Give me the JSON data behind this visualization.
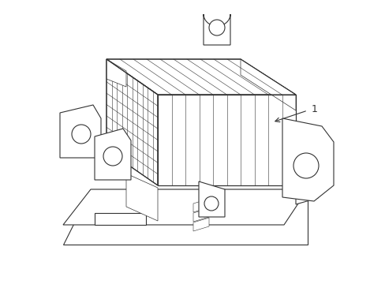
{
  "bg_color": "#ffffff",
  "line_color": "#333333",
  "label_number": "1",
  "figure_width": 4.89,
  "figure_height": 3.6,
  "dpi": 100
}
